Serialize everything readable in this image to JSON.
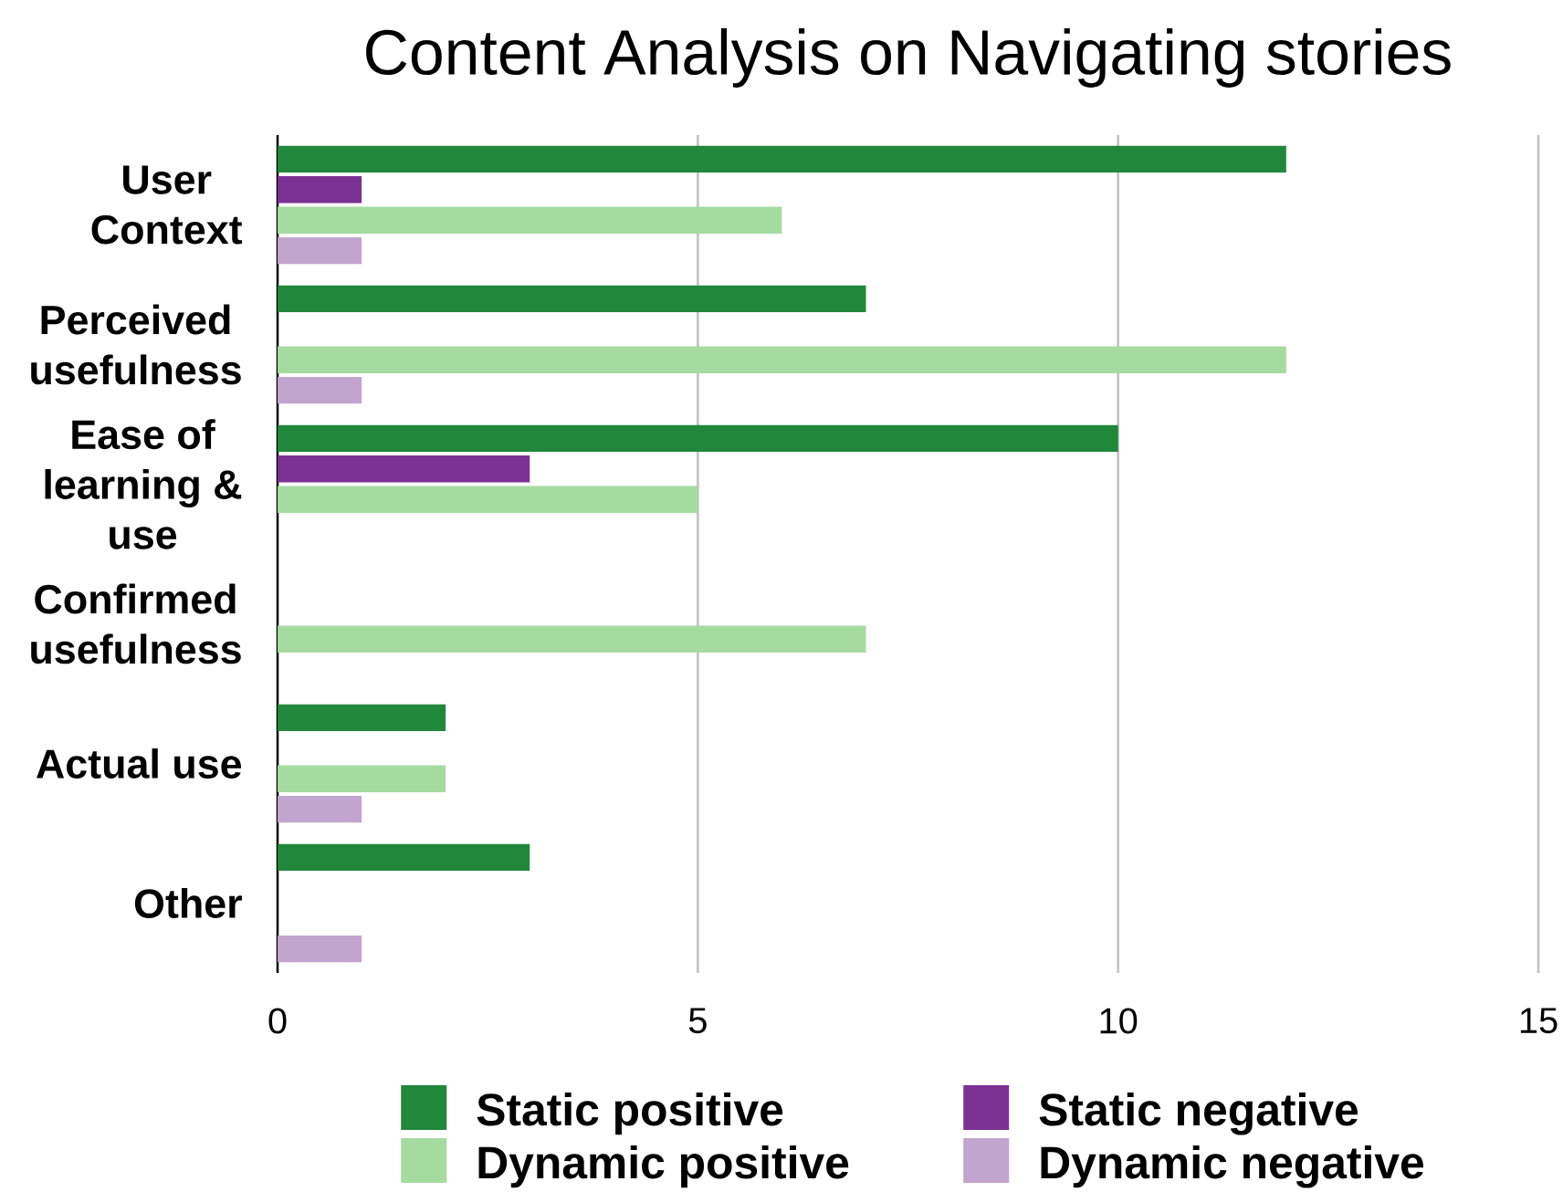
{
  "chart_data": {
    "type": "bar",
    "orientation": "horizontal",
    "title": "Content Analysis on Navigating stories",
    "categories": [
      "User Context",
      "Perceived usefulness",
      "Ease of learning & use",
      "Confirmed usefulness",
      "Actual use",
      "Other"
    ],
    "series": [
      {
        "name": "Static positive",
        "color": "#21873a",
        "values": [
          12,
          7,
          10,
          null,
          2,
          3
        ]
      },
      {
        "name": "Static negative",
        "color": "#7b3194",
        "values": [
          1,
          null,
          3,
          null,
          null,
          null
        ]
      },
      {
        "name": "Dynamic positive",
        "color": "#a6dba0",
        "values": [
          6,
          12,
          5,
          7,
          2,
          null
        ]
      },
      {
        "name": "Dynamic negative",
        "color": "#c2a5cf",
        "values": [
          1,
          1,
          null,
          null,
          1,
          1
        ]
      }
    ],
    "xlim": [
      0,
      15
    ],
    "xticks": [
      0,
      5,
      10,
      15
    ],
    "grid": "x",
    "legend": "bottom"
  }
}
